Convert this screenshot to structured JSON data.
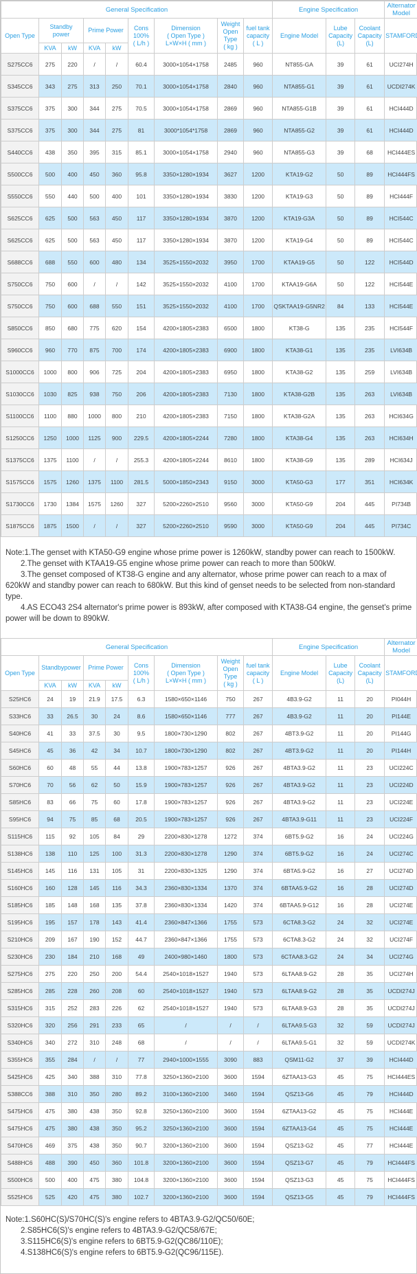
{
  "colors": {
    "header_text": "#2b9fe2",
    "model_link_text": "#35b0e5",
    "row_alt_background": "#cce9fa",
    "model_column_background": "#f2f2f2",
    "table_border": "#cccccc"
  },
  "tables": [
    {
      "header": {
        "general": "General Specification",
        "engine_spec": "Engine Specification",
        "alternator": "Alternator\nModel",
        "open_type": "Open Type",
        "standby": "Standby\npower",
        "prime": "Prime Power",
        "units": [
          "KVA",
          "kW",
          "KVA",
          "kW"
        ],
        "cons": "Cons\n100%\n( L/h )",
        "dimension": "Dimension\n( Open Type )\nL×W×H ( mm )",
        "weight": "Weight\nOpen Type\n( kg )",
        "fuel": "fuel tank\ncapacity\n( L )",
        "engine_model": "Engine Model",
        "lube": "Lube\nCapacity\n(L)",
        "coolant": "Coolant\nCapacity\n(L)",
        "stamford": "STAMFORD"
      },
      "rows": [
        [
          "S275CC6",
          "275",
          "220",
          "/",
          "/",
          "60.4",
          "3000×1054×1758",
          "2485",
          "960",
          "NT855-GA",
          "39",
          "61",
          "UCI274H"
        ],
        [
          "S345CC6",
          "343",
          "275",
          "313",
          "250",
          "70.1",
          "3000×1054×1758",
          "2840",
          "960",
          "NTA855-G1",
          "39",
          "61",
          "UCDI274K"
        ],
        [
          "S375CC6",
          "375",
          "300",
          "344",
          "275",
          "70.5",
          "3000×1054×1758",
          "2869",
          "960",
          "NTA855-G1B",
          "39",
          "61",
          "HCI444D"
        ],
        [
          "S375CC6",
          "375",
          "300",
          "344",
          "275",
          "81",
          "3000*1054*1758",
          "2869",
          "960",
          "NTA855-G2",
          "39",
          "61",
          "HCI444D"
        ],
        [
          "S440CC6",
          "438",
          "350",
          "395",
          "315",
          "85.1",
          "3000×1054×1758",
          "2940",
          "960",
          "NTA855-G3",
          "39",
          "68",
          "HCI444ES"
        ],
        [
          "S500CC6",
          "500",
          "400",
          "450",
          "360",
          "95.8",
          "3350×1280×1934",
          "3627",
          "1200",
          "KTA19-G2",
          "50",
          "89",
          "HCI444FS"
        ],
        [
          "S550CC6",
          "550",
          "440",
          "500",
          "400",
          "101",
          "3350×1280×1934",
          "3830",
          "1200",
          "KTA19-G3",
          "50",
          "89",
          "HCI444F"
        ],
        [
          "S625CC6",
          "625",
          "500",
          "563",
          "450",
          "117",
          "3350×1280×1934",
          "3870",
          "1200",
          "KTA19-G3A",
          "50",
          "89",
          "HCI544C"
        ],
        [
          "S625CC6",
          "625",
          "500",
          "563",
          "450",
          "117",
          "3350×1280×1934",
          "3870",
          "1200",
          "KTA19-G4",
          "50",
          "89",
          "HCI544C"
        ],
        [
          "S688CC6",
          "688",
          "550",
          "600",
          "480",
          "134",
          "3525×1550×2032",
          "3950",
          "1700",
          "KTAA19-G5",
          "50",
          "122",
          "HCI544D"
        ],
        [
          "S750CC6",
          "750",
          "600",
          "/",
          "/",
          "142",
          "3525×1550×2032",
          "4100",
          "1700",
          "KTAA19-G6A",
          "50",
          "122",
          "HCI544E"
        ],
        [
          "S750CC6",
          "750",
          "600",
          "688",
          "550",
          "151",
          "3525×1550×2032",
          "4100",
          "1700",
          "QSKTAA19-G5NR2",
          "84",
          "133",
          "HCI544E"
        ],
        [
          "S850CC6",
          "850",
          "680",
          "775",
          "620",
          "154",
          "4200×1805×2383",
          "6500",
          "1800",
          "KT38-G",
          "135",
          "235",
          "HCI544F"
        ],
        [
          "S960CC6",
          "960",
          "770",
          "875",
          "700",
          "174",
          "4200×1805×2383",
          "6900",
          "1800",
          "KTA38-G1",
          "135",
          "235",
          "LVI634B"
        ],
        [
          "S1000CC6",
          "1000",
          "800",
          "906",
          "725",
          "204",
          "4200×1805×2383",
          "6950",
          "1800",
          "KTA38-G2",
          "135",
          "259",
          "LVI634B"
        ],
        [
          "S1030CC6",
          "1030",
          "825",
          "938",
          "750",
          "206",
          "4200×1805×2383",
          "7130",
          "1800",
          "KTA38-G2B",
          "135",
          "263",
          "LVI634B"
        ],
        [
          "S1100CC6",
          "1100",
          "880",
          "1000",
          "800",
          "210",
          "4200×1805×2383",
          "7150",
          "1800",
          "KTA38-G2A",
          "135",
          "263",
          "HCI634G"
        ],
        [
          "S1250CC6",
          "1250",
          "1000",
          "1125",
          "900",
          "229.5",
          "4200×1805×2244",
          "7280",
          "1800",
          "KTA38-G4",
          "135",
          "263",
          "HCI634H"
        ],
        [
          "S1375CC6",
          "1375",
          "1100",
          "/",
          "/",
          "255.3",
          "4200×1805×2244",
          "8610",
          "1800",
          "KTA38-G9",
          "135",
          "289",
          "HCI634J"
        ],
        [
          "S1575CC6",
          "1575",
          "1260",
          "1375",
          "1100",
          "281.5",
          "5000×1850×2343",
          "9150",
          "3000",
          "KTA50-G3",
          "177",
          "351",
          "HCI634K"
        ],
        [
          "S1730CC6",
          "1730",
          "1384",
          "1575",
          "1260",
          "327",
          "5200×2260×2510",
          "9560",
          "3000",
          "KTA50-G9",
          "204",
          "445",
          "PI734B"
        ],
        [
          "S1875CC6",
          "1875",
          "1500",
          "/",
          "/",
          "327",
          "5200×2260×2510",
          "9590",
          "3000",
          "KTA50-G9",
          "204",
          "445",
          "PI734C"
        ]
      ]
    },
    {
      "header": {
        "general": "General Specification",
        "engine_spec": "Engine Specification",
        "alternator": "Alternator\nModel",
        "open_type": "Open Type",
        "standby": "Standbypower",
        "prime": "Prime Power",
        "units": [
          "KVA",
          "kW",
          "KVA",
          "kW"
        ],
        "cons": "Cons\n100%\n( L/h )",
        "dimension": "Dimension\n( Open Type )\nL×W×H ( mm )",
        "weight": "Weight\nOpen Type\n( kg )",
        "fuel": "fuel tank\ncapacity\n( L )",
        "engine_model": "Engine Model",
        "lube": "Lube\nCapacity\n(L)",
        "coolant": "Coolant\nCapacity\n(L)",
        "stamford": "STAMFORD"
      },
      "rows": [
        [
          "S25HC6",
          "24",
          "19",
          "21.9",
          "17.5",
          "6.3",
          "1580×650×1146",
          "750",
          "267",
          "4B3.9-G2",
          "11",
          "20",
          "PI044H"
        ],
        [
          "S33HC6",
          "33",
          "26.5",
          "30",
          "24",
          "8.6",
          "1580×650×1146",
          "777",
          "267",
          "4B3.9-G2",
          "11",
          "20",
          "PI144E"
        ],
        [
          "S40HC6",
          "41",
          "33",
          "37.5",
          "30",
          "9.5",
          "1800×730×1290",
          "802",
          "267",
          "4BT3.9-G2",
          "11",
          "20",
          "PI144G"
        ],
        [
          "S45HC6",
          "45",
          "36",
          "42",
          "34",
          "10.7",
          "1800×730×1290",
          "802",
          "267",
          "4BT3.9-G2",
          "11",
          "20",
          "PI144H"
        ],
        [
          "S60HC6",
          "60",
          "48",
          "55",
          "44",
          "13.8",
          "1900×783×1257",
          "926",
          "267",
          "4BTA3.9-G2",
          "11",
          "23",
          "UCI224C"
        ],
        [
          "S70HC6",
          "70",
          "56",
          "62",
          "50",
          "15.9",
          "1900×783×1257",
          "926",
          "267",
          "4BTA3.9-G2",
          "11",
          "23",
          "UCI224D"
        ],
        [
          "S85HC6",
          "83",
          "66",
          "75",
          "60",
          "17.8",
          "1900×783×1257",
          "926",
          "267",
          "4BTA3.9-G2",
          "11",
          "23",
          "UCI224E"
        ],
        [
          "S95HC6",
          "94",
          "75",
          "85",
          "68",
          "20.5",
          "1900×783×1257",
          "926",
          "267",
          "4BTA3.9-G11",
          "11",
          "23",
          "UCI224F"
        ],
        [
          "S115HC6",
          "115",
          "92",
          "105",
          "84",
          "29",
          "2200×830×1278",
          "1272",
          "374",
          "6BT5.9-G2",
          "16",
          "24",
          "UCI224G"
        ],
        [
          "S138HC6",
          "138",
          "110",
          "125",
          "100",
          "31.3",
          "2200×830×1278",
          "1290",
          "374",
          "6BT5.9-G2",
          "16",
          "24",
          "UCI274C"
        ],
        [
          "S145HC6",
          "145",
          "116",
          "131",
          "105",
          "31",
          "2200×830×1325",
          "1290",
          "374",
          "6BTA5.9-G2",
          "16",
          "27",
          "UCI274D"
        ],
        [
          "S160HC6",
          "160",
          "128",
          "145",
          "116",
          "34.3",
          "2360×830×1334",
          "1370",
          "374",
          "6BTAA5.9-G2",
          "16",
          "28",
          "UCI274D"
        ],
        [
          "S185HC6",
          "185",
          "148",
          "168",
          "135",
          "37.8",
          "2360×830×1334",
          "1420",
          "374",
          "6BTAA5.9-G12",
          "16",
          "28",
          "UCI274E"
        ],
        [
          "S195HC6",
          "195",
          "157",
          "178",
          "143",
          "41.4",
          "2360×847×1366",
          "1755",
          "573",
          "6CTA8.3-G2",
          "24",
          "32",
          "UCI274E"
        ],
        [
          "S210HC6",
          "209",
          "167",
          "190",
          "152",
          "44.7",
          "2360×847×1366",
          "1755",
          "573",
          "6CTA8.3-G2",
          "24",
          "32",
          "UCI274F"
        ],
        [
          "S230HC6",
          "230",
          "184",
          "210",
          "168",
          "49",
          "2400×980×1460",
          "1800",
          "573",
          "6CTAA8.3-G2",
          "24",
          "34",
          "UCI274G"
        ],
        [
          "S275HC6",
          "275",
          "220",
          "250",
          "200",
          "54.4",
          "2540×1018×1527",
          "1940",
          "573",
          "6LTAA8.9-G2",
          "28",
          "35",
          "UCI274H"
        ],
        [
          "S285HC6",
          "285",
          "228",
          "260",
          "208",
          "60",
          "2540×1018×1527",
          "1940",
          "573",
          "6LTAA8.9-G2",
          "28",
          "35",
          "UCDI274J"
        ],
        [
          "S315HC6",
          "315",
          "252",
          "283",
          "226",
          "62",
          "2540×1018×1527",
          "1940",
          "573",
          "6LTAA8.9-G3",
          "28",
          "35",
          "UCDI274J"
        ],
        [
          "S320HC6",
          "320",
          "256",
          "291",
          "233",
          "65",
          "/",
          "/",
          "/",
          "6LTAA9.5-G3",
          "32",
          "59",
          "UCDI274J"
        ],
        [
          "S340HC6",
          "340",
          "272",
          "310",
          "248",
          "68",
          "/",
          "/",
          "/",
          "6LTAA9.5-G1",
          "32",
          "59",
          "UCDI274K"
        ],
        [
          "S355HC6",
          "355",
          "284",
          "/",
          "/",
          "77",
          "2940×1000×1555",
          "3090",
          "883",
          "QSM11-G2",
          "37",
          "39",
          "HCI444D"
        ],
        [
          "S425HC6",
          "425",
          "340",
          "388",
          "310",
          "77.8",
          "3250×1360×2100",
          "3600",
          "1594",
          "6ZTAA13-G3",
          "45",
          "75",
          "HCI444ES"
        ],
        [
          "S388CC6",
          "388",
          "310",
          "350",
          "280",
          "89.2",
          "3100×1360×2100",
          "3460",
          "1594",
          "QSZ13-G6",
          "45",
          "79",
          "HCI444D"
        ],
        [
          "S475HC6",
          "475",
          "380",
          "438",
          "350",
          "92.8",
          "3250×1360×2100",
          "3600",
          "1594",
          "6ZTAA13-G2",
          "45",
          "75",
          "HCI444E"
        ],
        [
          "S475HC6",
          "475",
          "380",
          "438",
          "350",
          "95.2",
          "3250×1360×2100",
          "3600",
          "1594",
          "6ZTAA13-G4",
          "45",
          "75",
          "HCI444E"
        ],
        [
          "S470HC6",
          "469",
          "375",
          "438",
          "350",
          "90.7",
          "3200×1360×2100",
          "3600",
          "1594",
          "QSZ13-G2",
          "45",
          "77",
          "HCI444E"
        ],
        [
          "S488HC6",
          "488",
          "390",
          "450",
          "360",
          "101.8",
          "3200×1360×2100",
          "3600",
          "1594",
          "QSZ13-G7",
          "45",
          "79",
          "HCI444FS"
        ],
        [
          "S500HC6",
          "500",
          "400",
          "475",
          "380",
          "104.8",
          "3200×1360×2100",
          "3600",
          "1594",
          "QSZ13-G3",
          "45",
          "75",
          "HCI444FS"
        ],
        [
          "S525HC6",
          "525",
          "420",
          "475",
          "380",
          "102.7",
          "3200×1360×2100",
          "3600",
          "1594",
          "QSZ13-G5",
          "45",
          "79",
          "HCI444FS"
        ]
      ]
    }
  ],
  "notes_top": {
    "lines": [
      "Note:1.The genset with KTA50-G9 engine whose prime power is 1260kW, standby power can reach to 1500kW.",
      "2.The genset with KTAA19-G5 engine whose prime power can reach to more than 500kW.",
      "3.The genset composed of KT38-G engine and any alternator, whose prime power can reach to a max of 620kW and standby power can reach to 680kW. But this kind of genset needs to be selected from non-standard type.",
      "4.AS ECO43 2S4 alternator's prime power is 893kW, after composed with KTA38-G4 engine, the genset's prime power will be down to 890kW."
    ]
  },
  "notes_bottom": {
    "lines": [
      "Note:1.S60HC(S)/S70HC(S)'s engine refers to 4BTA3.9-G2/QC50/60E;",
      "2.S85HC6(S)'s engine refers to 4BTA3.9-G2/QC58/67E;",
      "3.S115HC6(S)'s engine refers to 6BT5.9-G2(QC86/110E);",
      "4.S138HC6(S)'s engine refers to 6BT5.9-G2(QC96/115E)."
    ]
  }
}
